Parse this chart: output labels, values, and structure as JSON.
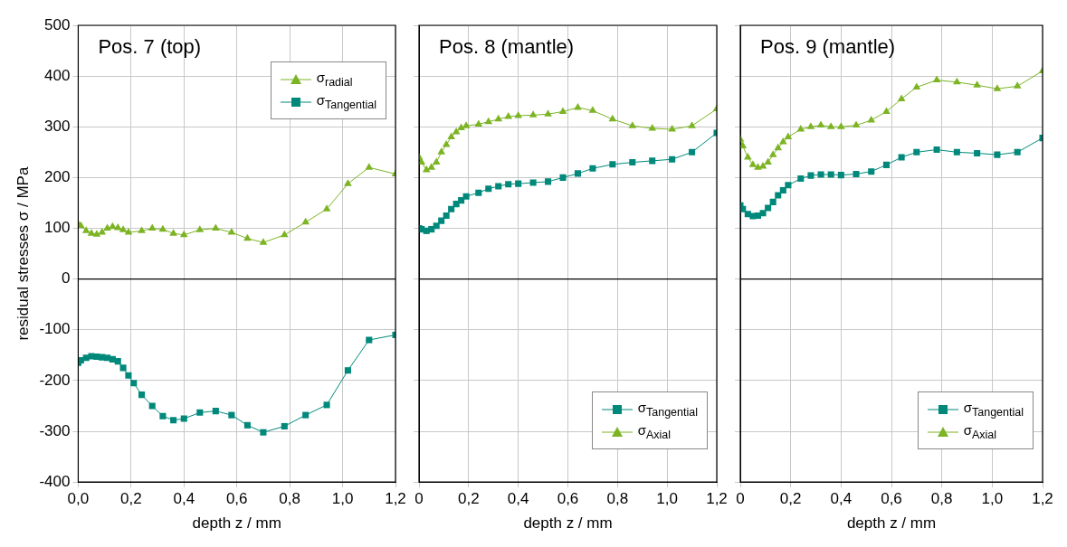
{
  "chart_data": [
    {
      "type": "line",
      "title": "Pos. 7 (top)",
      "xlabel": "depth z / mm",
      "ylabel": "residual stresses σ / MPa",
      "xlim": [
        0,
        1.2
      ],
      "ylim": [
        -400,
        500
      ],
      "xticks": [
        {
          "value": 0,
          "label": "0,0"
        },
        {
          "value": 0.2,
          "label": "0,2"
        },
        {
          "value": 0.4,
          "label": "0,4"
        },
        {
          "value": 0.6,
          "label": "0,6"
        },
        {
          "value": 0.8,
          "label": "0,8"
        },
        {
          "value": 1,
          "label": "1,0"
        },
        {
          "value": 1.2,
          "label": "1,2"
        }
      ],
      "yticks": [
        -400,
        -300,
        -200,
        -100,
        0,
        100,
        200,
        300,
        400,
        500
      ],
      "grid": true,
      "legend": "top right",
      "ref_lines": [
        {
          "axis": "y",
          "value": 0,
          "color": "#000000"
        }
      ],
      "series": [
        {
          "name": "σ$_{radial}$",
          "color": "#7cb424",
          "marker": "triangle",
          "x": [
            0,
            0.01,
            0.03,
            0.05,
            0.07,
            0.09,
            0.11,
            0.13,
            0.15,
            0.17,
            0.19,
            0.24,
            0.28,
            0.32,
            0.36,
            0.4,
            0.46,
            0.52,
            0.58,
            0.64,
            0.7,
            0.78,
            0.86,
            0.94,
            1.02,
            1.1,
            1.2
          ],
          "values": [
            108,
            105,
            95,
            90,
            88,
            92,
            100,
            103,
            101,
            97,
            92,
            95,
            100,
            98,
            90,
            87,
            97,
            100,
            92,
            80,
            72,
            87,
            112,
            138,
            188,
            220,
            207
          ]
        },
        {
          "name": "σ$_{Tangential}$",
          "color": "#00897b",
          "marker": "square",
          "x": [
            0,
            0.01,
            0.03,
            0.05,
            0.07,
            0.09,
            0.11,
            0.13,
            0.15,
            0.17,
            0.19,
            0.21,
            0.24,
            0.28,
            0.32,
            0.36,
            0.4,
            0.46,
            0.52,
            0.58,
            0.64,
            0.7,
            0.78,
            0.86,
            0.94,
            1.02,
            1.1,
            1.2
          ],
          "values": [
            -165,
            -160,
            -155,
            -152,
            -153,
            -154,
            -155,
            -158,
            -162,
            -175,
            -190,
            -205,
            -228,
            -250,
            -270,
            -278,
            -275,
            -263,
            -260,
            -268,
            -288,
            -302,
            -290,
            -268,
            -248,
            -180,
            -120,
            -110
          ]
        }
      ]
    },
    {
      "type": "line",
      "title": "Pos. 8 (mantle)",
      "xlabel": "depth z / mm",
      "xlim": [
        0,
        1.2
      ],
      "ylim": [
        -400,
        500
      ],
      "tick_labels": "x",
      "xticks": [
        {
          "value": 0,
          "label": "0"
        },
        {
          "value": 0.2,
          "label": "0,2"
        },
        {
          "value": 0.4,
          "label": "0,4"
        },
        {
          "value": 0.6,
          "label": "0,6"
        },
        {
          "value": 0.8,
          "label": "0,8"
        },
        {
          "value": 1,
          "label": "1,0"
        },
        {
          "value": 1.2,
          "label": "1,2"
        }
      ],
      "yticks": [
        -400,
        -300,
        -200,
        -100,
        0,
        100,
        200,
        300,
        400,
        500
      ],
      "grid": true,
      "legend": "bottom right",
      "ref_lines": [
        {
          "axis": "y",
          "value": 0,
          "color": "#000000"
        }
      ],
      "series": [
        {
          "name": "σ$_{Tangential}$",
          "color": "#00897b",
          "marker": "square",
          "x": [
            0,
            0.01,
            0.03,
            0.05,
            0.07,
            0.09,
            0.11,
            0.13,
            0.15,
            0.17,
            0.19,
            0.24,
            0.28,
            0.32,
            0.36,
            0.4,
            0.46,
            0.52,
            0.58,
            0.64,
            0.7,
            0.78,
            0.86,
            0.94,
            1.02,
            1.1,
            1.2
          ],
          "values": [
            100,
            98,
            95,
            98,
            105,
            115,
            125,
            138,
            148,
            155,
            163,
            170,
            178,
            183,
            187,
            188,
            190,
            192,
            200,
            208,
            218,
            226,
            230,
            233,
            236,
            250,
            288
          ]
        },
        {
          "name": "σ$_{Axial}$",
          "color": "#7cb424",
          "marker": "triangle",
          "x": [
            0,
            0.01,
            0.03,
            0.05,
            0.07,
            0.09,
            0.11,
            0.13,
            0.15,
            0.17,
            0.19,
            0.24,
            0.28,
            0.32,
            0.36,
            0.4,
            0.46,
            0.52,
            0.58,
            0.64,
            0.7,
            0.78,
            0.86,
            0.94,
            1.02,
            1.1,
            1.2
          ],
          "values": [
            240,
            230,
            215,
            220,
            230,
            250,
            265,
            280,
            290,
            298,
            302,
            305,
            310,
            315,
            320,
            322,
            323,
            325,
            330,
            338,
            332,
            315,
            302,
            297,
            295,
            302,
            335
          ]
        }
      ]
    },
    {
      "type": "line",
      "title": "Pos. 9 (mantle)",
      "xlabel": "depth z / mm",
      "xlim": [
        0,
        1.2
      ],
      "ylim": [
        -400,
        500
      ],
      "tick_labels": "x",
      "xticks": [
        {
          "value": 0,
          "label": "0"
        },
        {
          "value": 0.2,
          "label": "0,2"
        },
        {
          "value": 0.4,
          "label": "0,4"
        },
        {
          "value": 0.6,
          "label": "0,6"
        },
        {
          "value": 0.8,
          "label": "0,8"
        },
        {
          "value": 1,
          "label": "1,0"
        },
        {
          "value": 1.2,
          "label": "1,2"
        }
      ],
      "yticks": [
        -400,
        -300,
        -200,
        -100,
        0,
        100,
        200,
        300,
        400,
        500
      ],
      "grid": true,
      "legend": "bottom right",
      "ref_lines": [
        {
          "axis": "y",
          "value": 0,
          "color": "#000000"
        }
      ],
      "series": [
        {
          "name": "σ$_{Tangential}$",
          "color": "#00897b",
          "marker": "square",
          "x": [
            0,
            0.01,
            0.03,
            0.05,
            0.07,
            0.09,
            0.11,
            0.13,
            0.15,
            0.17,
            0.19,
            0.24,
            0.28,
            0.32,
            0.36,
            0.4,
            0.46,
            0.52,
            0.58,
            0.64,
            0.7,
            0.78,
            0.86,
            0.94,
            1.02,
            1.1,
            1.2
          ],
          "values": [
            145,
            138,
            128,
            124,
            125,
            130,
            140,
            152,
            165,
            175,
            185,
            198,
            204,
            206,
            206,
            205,
            207,
            212,
            225,
            240,
            250,
            255,
            250,
            248,
            245,
            250,
            278
          ]
        },
        {
          "name": "σ$_{Axial}$",
          "color": "#7cb424",
          "marker": "triangle",
          "x": [
            0,
            0.01,
            0.03,
            0.05,
            0.07,
            0.09,
            0.11,
            0.13,
            0.15,
            0.17,
            0.19,
            0.24,
            0.28,
            0.32,
            0.36,
            0.4,
            0.46,
            0.52,
            0.58,
            0.64,
            0.7,
            0.78,
            0.86,
            0.94,
            1.02,
            1.1,
            1.2
          ],
          "values": [
            275,
            262,
            240,
            225,
            220,
            222,
            230,
            245,
            258,
            270,
            280,
            295,
            300,
            303,
            300,
            300,
            303,
            313,
            330,
            355,
            378,
            392,
            388,
            382,
            375,
            380,
            410
          ]
        }
      ]
    }
  ]
}
